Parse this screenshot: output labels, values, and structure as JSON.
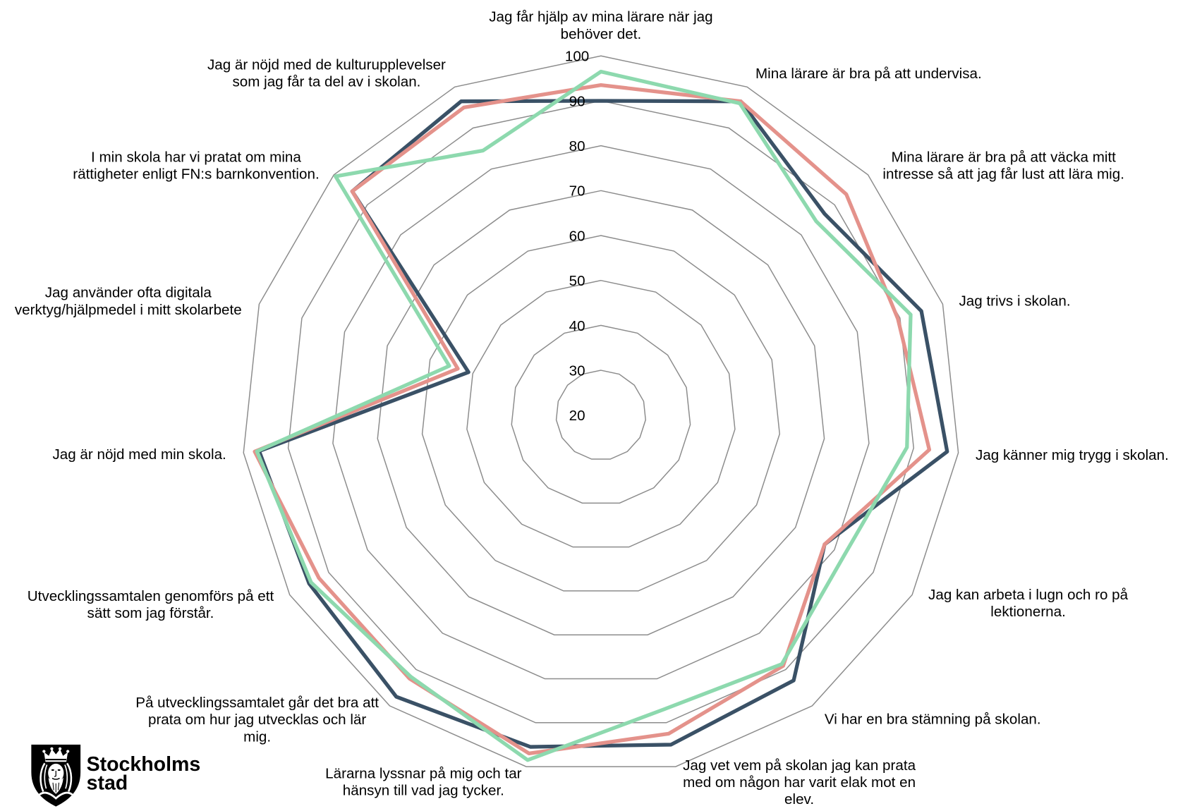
{
  "chart_data": {
    "type": "radar",
    "categories": [
      "Jag får hjälp av mina lärare när jag behöver det.",
      "Mina lärare är bra på att undervisa.",
      "Mina lärare är bra på att väcka mitt intresse så att jag får lust att lära mig.",
      "Jag trivs i skolan.",
      "Jag känner mig trygg i skolan.",
      "Jag kan arbeta i lugn och ro på lektionerna.",
      "Vi har en bra stämning på skolan.",
      "Jag vet vem på skolan jag kan prata med om någon har varit elak mot en elev.",
      "Lärarna lyssnar på mig och tar hänsyn till vad jag tycker.",
      "På utvecklingssamtalet går det bra att prata om hur jag utvecklas och lär mig.",
      "Utvecklingssamtalen genomförs på ett sätt som jag förstår.",
      "Jag är nöjd med min skola.",
      "Jag använder ofta digitala verktyg/hjälpmedel i mitt skolarbete",
      "I min skola har vi pratat om mina rättigheter enligt FN:s barnkonvention.",
      "Jag är nöjd med de kulturupplevelser som jag får ta del av i skolan."
    ],
    "series": [
      {
        "color": "#3a5166",
        "values": [
          90,
          96.5,
          87,
          95,
          97.5,
          77.5,
          93,
          95,
          95.5,
          97.5,
          95,
          96.5,
          51,
          94.5,
          96.5
        ]
      },
      {
        "color": "#e4928b",
        "values": [
          93.5,
          96.5,
          93.5,
          89.5,
          93.5,
          77.5,
          89,
          92.5,
          97,
          92.5,
          92.5,
          97.5,
          53.5,
          94.5,
          95
        ]
      },
      {
        "color": "#8dd9ae",
        "values": [
          96.5,
          96,
          84.5,
          92.5,
          88.5,
          82.5,
          88.5,
          87,
          98.5,
          92,
          94.5,
          97,
          55.5,
          99.5,
          84.5
        ]
      }
    ],
    "r_range": [
      20,
      100
    ],
    "r_ticks": [
      20,
      30,
      40,
      50,
      60,
      70,
      80,
      90,
      100
    ],
    "grid": true,
    "spokes": false,
    "legend": "none",
    "colors": {
      "grid": "#8c8c8c",
      "text": "#000000"
    }
  },
  "logo": {
    "name_line1": "Stockholms",
    "name_line2": "stad"
  }
}
